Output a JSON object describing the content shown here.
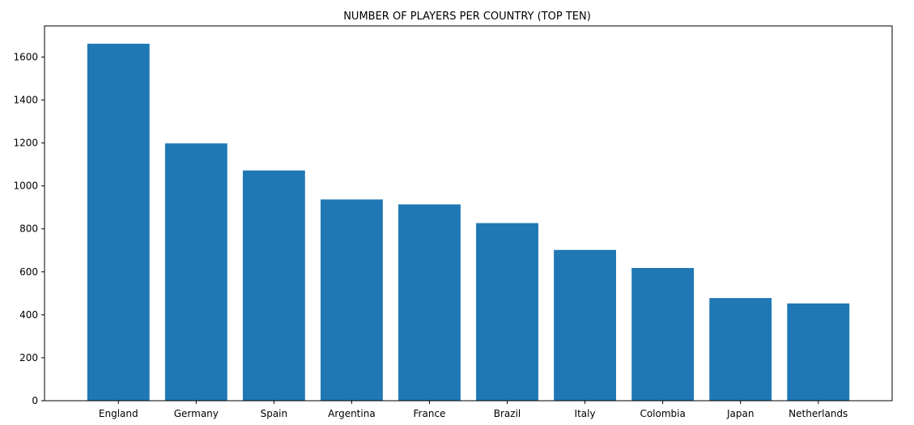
{
  "chart_data": {
    "type": "bar",
    "title": "NUMBER OF PLAYERS PER COUNTRY (TOP TEN)",
    "xlabel": "",
    "ylabel": "",
    "categories": [
      "England",
      "Germany",
      "Spain",
      "Argentina",
      "France",
      "Brazil",
      "Italy",
      "Colombia",
      "Japan",
      "Netherlands"
    ],
    "values": [
      1662,
      1198,
      1072,
      937,
      914,
      827,
      702,
      618,
      478,
      453
    ],
    "ylim": [
      0,
      1745
    ],
    "yticks": [
      0,
      200,
      400,
      600,
      800,
      1000,
      1200,
      1400,
      1600
    ],
    "grid": false,
    "legend": "none",
    "bar_color": "#1f77b4"
  }
}
